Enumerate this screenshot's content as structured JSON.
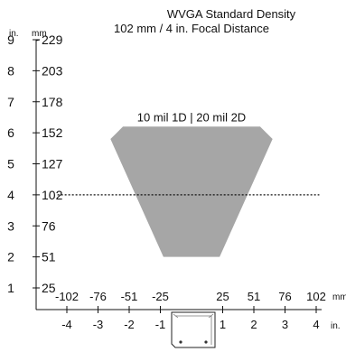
{
  "chart_data": {
    "type": "area",
    "title": "WVGA Standard Density",
    "subtitle": "102 mm / 4 in. Focal Distance",
    "units": {
      "vertical_in": "in.",
      "vertical_mm": "mm",
      "horizontal_mm": "mm",
      "horizontal_in": "in."
    },
    "y_ticks_in": [
      "9",
      "8",
      "7",
      "6",
      "5",
      "4",
      "3",
      "2",
      "1"
    ],
    "y_ticks_mm": [
      "229",
      "203",
      "178",
      "152",
      "127",
      "102",
      "76",
      "51",
      "25"
    ],
    "x_ticks_mm": [
      "-102",
      "-76",
      "-51",
      "-25",
      "25",
      "51",
      "76",
      "102"
    ],
    "x_ticks_in": [
      "-4",
      "-3",
      "-2",
      "-1",
      "1",
      "2",
      "3",
      "4"
    ],
    "ylim_in": [
      0.5,
      9
    ],
    "xlim_in": [
      -4.4,
      4.4
    ],
    "series": [
      {
        "name": "10 mil 1D | 20 mil 2D",
        "color": "#a6a6a6",
        "polygon_in": [
          {
            "x": -2.6,
            "y": 5.8
          },
          {
            "x": -2.2,
            "y": 6.2
          },
          {
            "x": 2.2,
            "y": 6.2
          },
          {
            "x": 2.6,
            "y": 5.8
          },
          {
            "x": 0.9,
            "y": 2.0
          },
          {
            "x": -0.9,
            "y": 2.0
          }
        ]
      }
    ],
    "focal_distance_in": 4,
    "focal_line_xrange_in": [
      -4.3,
      4.1
    ]
  }
}
